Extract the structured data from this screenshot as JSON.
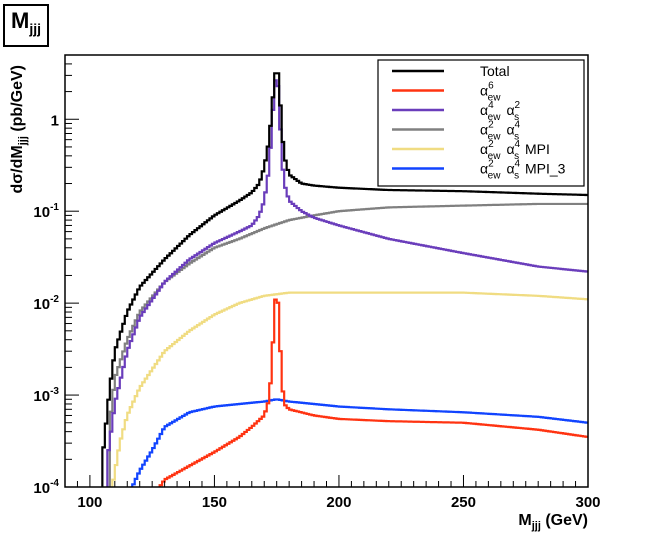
{
  "figure_title": "M",
  "figure_title_sub": "jjj",
  "chart_data": {
    "type": "line",
    "title": "M_jjj",
    "xlabel": "M",
    "xlabel_sub": "jjj",
    "xlabel_unit": " (GeV)",
    "ylabel": "dσ/dM",
    "ylabel_sub": "jjj",
    "ylabel_unit": " (pb/GeV)",
    "xlim": [
      90,
      300
    ],
    "ylim": [
      0.0001,
      5
    ],
    "yscale": "log",
    "grid": false,
    "legend_position": "top-right",
    "x_ticks": [
      "100",
      "150",
      "200",
      "250",
      "300"
    ],
    "y_ticks": [
      {
        "value": 0.0001,
        "base": "10",
        "exp": "-4"
      },
      {
        "value": 0.001,
        "base": "10",
        "exp": "-3"
      },
      {
        "value": 0.01,
        "base": "10",
        "exp": "-2"
      },
      {
        "value": 0.1,
        "base": "10",
        "exp": "-1"
      },
      {
        "value": 1,
        "base": "1",
        "exp": ""
      }
    ],
    "series": [
      {
        "name": "Total",
        "legend": "Total",
        "color": "#000000",
        "x": [
          105,
          108,
          110,
          115,
          120,
          130,
          140,
          150,
          160,
          165,
          168,
          170,
          172,
          173,
          174,
          175,
          176,
          177,
          178,
          180,
          185,
          190,
          200,
          220,
          250,
          280,
          300
        ],
        "y": [
          0.0002,
          0.0012,
          0.003,
          0.008,
          0.015,
          0.03,
          0.055,
          0.09,
          0.13,
          0.16,
          0.2,
          0.3,
          0.6,
          1.2,
          2.5,
          4.0,
          2.5,
          0.8,
          0.4,
          0.25,
          0.2,
          0.19,
          0.18,
          0.17,
          0.165,
          0.155,
          0.15
        ]
      },
      {
        "name": "alpha_ew^6",
        "legend_sym": "α",
        "legend_sup": "6",
        "legend_sub": "ew",
        "legend_tail": "",
        "color": "#ff3311",
        "x": [
          128,
          130,
          140,
          150,
          160,
          165,
          170,
          172,
          173,
          174,
          175,
          176,
          177,
          178,
          180,
          190,
          200,
          220,
          250,
          280,
          300
        ],
        "y": [
          0.0001,
          0.00012,
          0.00017,
          0.00024,
          0.00035,
          0.00045,
          0.0006,
          0.0009,
          0.002,
          0.007,
          0.017,
          0.006,
          0.0015,
          0.0008,
          0.0007,
          0.0006,
          0.00055,
          0.00052,
          0.0005,
          0.00042,
          0.00035
        ]
      },
      {
        "name": "alpha_ew^4 alpha_s^2",
        "legend_sym": "α",
        "legend_sup": "4",
        "legend_sub": "ew",
        "legend_sym2": "α",
        "legend_sup2": "2",
        "legend_sub2": "s",
        "legend_tail": "",
        "color": "#6a3dbb",
        "x": [
          107,
          110,
          115,
          120,
          130,
          140,
          150,
          160,
          165,
          168,
          170,
          172,
          173,
          174,
          175,
          176,
          177,
          178,
          180,
          185,
          190,
          200,
          220,
          250,
          280,
          300
        ],
        "y": [
          0.0002,
          0.0008,
          0.003,
          0.007,
          0.017,
          0.03,
          0.045,
          0.06,
          0.07,
          0.09,
          0.13,
          0.3,
          0.8,
          2.0,
          3.5,
          1.5,
          0.4,
          0.2,
          0.13,
          0.1,
          0.085,
          0.07,
          0.05,
          0.035,
          0.025,
          0.022
        ]
      },
      {
        "name": "alpha_ew^2 alpha_s^4",
        "legend_sym": "α",
        "legend_sup": "2",
        "legend_sub": "ew",
        "legend_sym2": "α",
        "legend_sup2": "4",
        "legend_sub2": "s",
        "legend_tail": "",
        "color": "#808080",
        "x": [
          108,
          110,
          115,
          120,
          130,
          140,
          150,
          160,
          170,
          180,
          190,
          200,
          220,
          250,
          280,
          300
        ],
        "y": [
          0.0005,
          0.0015,
          0.004,
          0.008,
          0.017,
          0.027,
          0.04,
          0.05,
          0.065,
          0.08,
          0.09,
          0.1,
          0.11,
          0.115,
          0.12,
          0.12
        ]
      },
      {
        "name": "alpha_ew^2 alpha_s^4 MPI",
        "legend_sym": "α",
        "legend_sup": "2",
        "legend_sub": "ew",
        "legend_sym2": "α",
        "legend_sup2": "4",
        "legend_sub2": "s",
        "legend_tail": " MPI",
        "color": "#f0dc82",
        "x": [
          109,
          112,
          115,
          120,
          130,
          140,
          150,
          160,
          170,
          180,
          200,
          220,
          250,
          280,
          300
        ],
        "y": [
          0.0001,
          0.0003,
          0.0006,
          0.0012,
          0.003,
          0.005,
          0.0075,
          0.01,
          0.012,
          0.013,
          0.013,
          0.013,
          0.013,
          0.012,
          0.011
        ]
      },
      {
        "name": "alpha_ew^2 alpha_s^4 MPI_3",
        "legend_sym": "α",
        "legend_sup": "2",
        "legend_sub": "ew",
        "legend_sym2": "α",
        "legend_sup2": "4",
        "legend_sub2": "s",
        "legend_tail": " MPI_3",
        "color": "#1144ff",
        "x": [
          117,
          120,
          125,
          130,
          140,
          150,
          160,
          170,
          175,
          180,
          190,
          200,
          220,
          250,
          280,
          300
        ],
        "y": [
          0.0001,
          0.00015,
          0.00025,
          0.00045,
          0.00065,
          0.00075,
          0.0008,
          0.00085,
          0.0009,
          0.00085,
          0.0008,
          0.00075,
          0.0007,
          0.00065,
          0.00058,
          0.0005
        ]
      }
    ]
  }
}
